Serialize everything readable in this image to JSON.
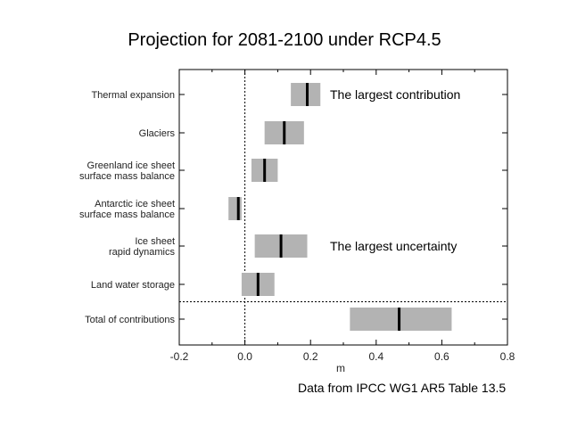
{
  "chart_data": {
    "type": "range-bar",
    "title": "Projection for 2081-2100 under RCP4.5",
    "xlabel": "m",
    "ylabel": "",
    "xlim": [
      -0.2,
      0.8
    ],
    "xticks": [
      "-0.2",
      "0.0",
      "0.2",
      "0.4",
      "0.6",
      "0.8"
    ],
    "xtick_values": [
      -0.2,
      0.0,
      0.2,
      0.4,
      0.6,
      0.8
    ],
    "grid": false,
    "bar_color": "#b3b3b3",
    "median_color": "#000000",
    "vline_at": 0.0,
    "separator_after_index": 5,
    "categories": [
      [
        "Thermal expansion"
      ],
      [
        "Glaciers"
      ],
      [
        "Greenland ice sheet",
        "surface mass balance"
      ],
      [
        "Antarctic ice sheet",
        "surface mass balance"
      ],
      [
        "Ice sheet",
        "rapid dynamics"
      ],
      [
        "Land water storage"
      ],
      [
        "Total of contributions"
      ]
    ],
    "ranges": [
      {
        "low": 0.14,
        "median": 0.19,
        "high": 0.23
      },
      {
        "low": 0.06,
        "median": 0.12,
        "high": 0.18
      },
      {
        "low": 0.02,
        "median": 0.06,
        "high": 0.1
      },
      {
        "low": -0.05,
        "median": -0.02,
        "high": -0.01
      },
      {
        "low": 0.03,
        "median": 0.11,
        "high": 0.19
      },
      {
        "low": -0.01,
        "median": 0.04,
        "high": 0.09
      },
      {
        "low": 0.32,
        "median": 0.47,
        "high": 0.63
      }
    ],
    "annotations": [
      {
        "text": "The largest contribution",
        "row": 0
      },
      {
        "text": "The largest uncertainty",
        "row": 4
      }
    ]
  },
  "source_note": "Data from IPCC WG1 AR5 Table 13.5"
}
